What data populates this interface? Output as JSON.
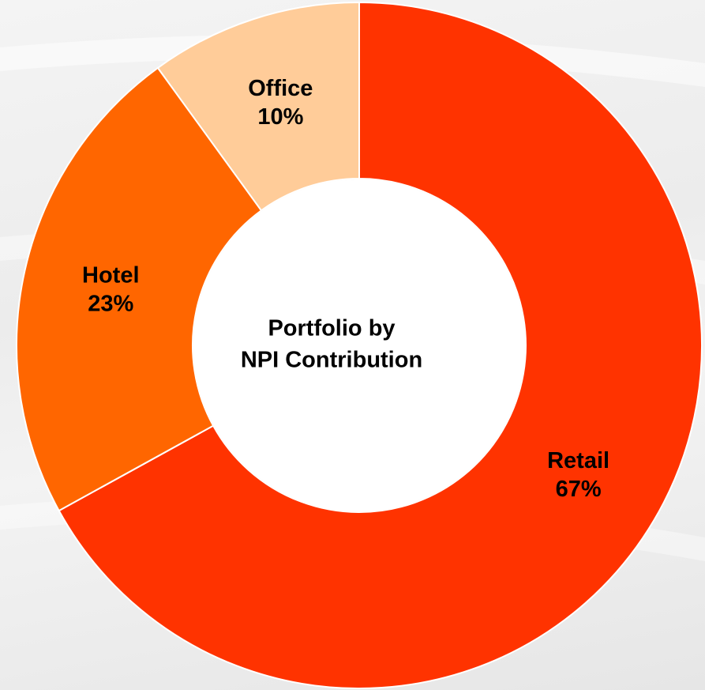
{
  "chart_data": {
    "type": "donut",
    "title": [
      "Portfolio by",
      "NPI Contribution"
    ],
    "categories": [
      "Retail",
      "Hotel",
      "Office"
    ],
    "values": [
      67,
      23,
      10
    ],
    "value_labels": [
      "67%",
      "23%",
      "10%"
    ],
    "colors": [
      "#ff3300",
      "#ff6600",
      "#ffcc99"
    ]
  }
}
